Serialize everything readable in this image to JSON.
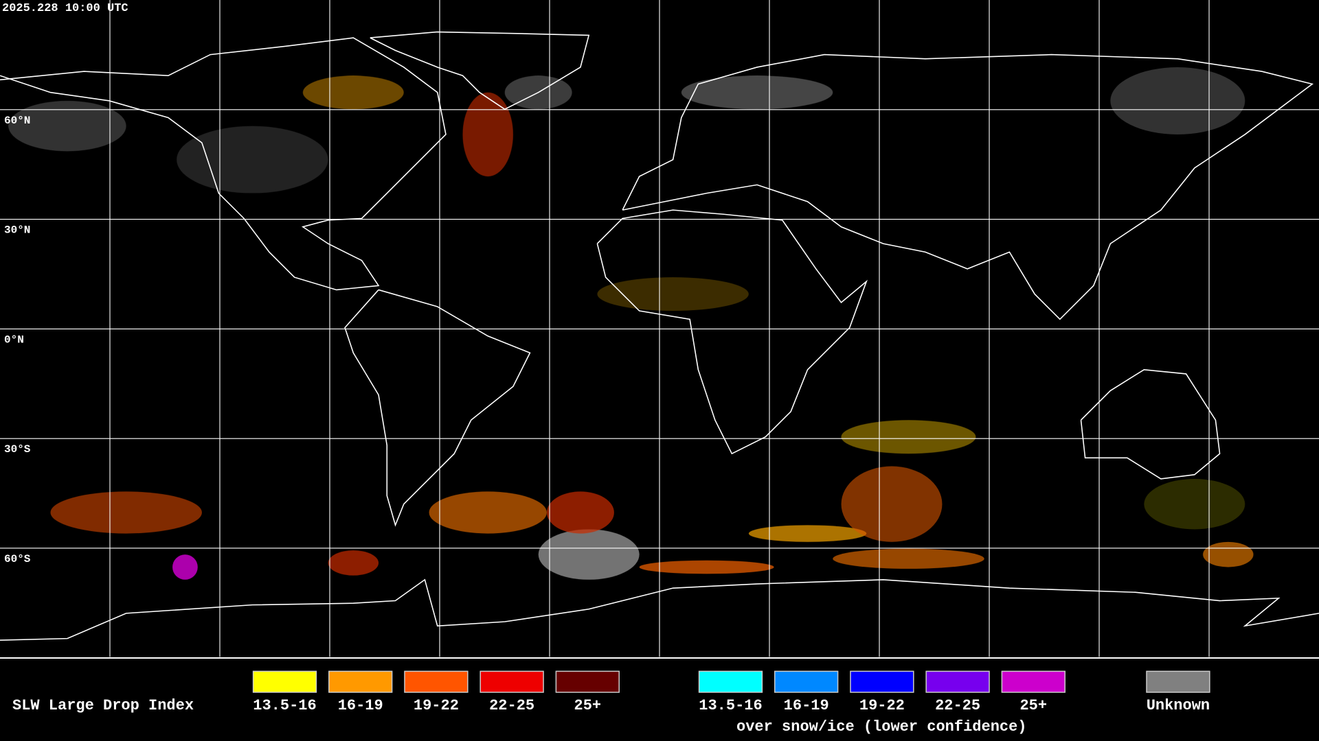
{
  "header": {
    "timestamp": "2025.228 10:00 UTC"
  },
  "grid": {
    "latitude_labels": [
      "60°N",
      "30°N",
      "0°N",
      "30°S",
      "60°S"
    ]
  },
  "legend": {
    "title": "SLW Large Drop Index",
    "groups": [
      {
        "items": [
          {
            "label": "13.5-16",
            "color": "#ffff00"
          },
          {
            "label": "16-19",
            "color": "#ff9900"
          },
          {
            "label": "19-22",
            "color": "#ff5500"
          },
          {
            "label": "22-25",
            "color": "#ee0000"
          },
          {
            "label": "25+",
            "color": "#660000"
          }
        ]
      },
      {
        "items": [
          {
            "label": "13.5-16",
            "color": "#00ffff"
          },
          {
            "label": "16-19",
            "color": "#0088ff"
          },
          {
            "label": "19-22",
            "color": "#0000ff"
          },
          {
            "label": "22-25",
            "color": "#7700ee"
          },
          {
            "label": "25+",
            "color": "#cc00cc"
          }
        ],
        "caption": "over snow/ice (lower confidence)"
      }
    ],
    "unknown": {
      "label": "Unknown",
      "color": "#808080"
    }
  }
}
